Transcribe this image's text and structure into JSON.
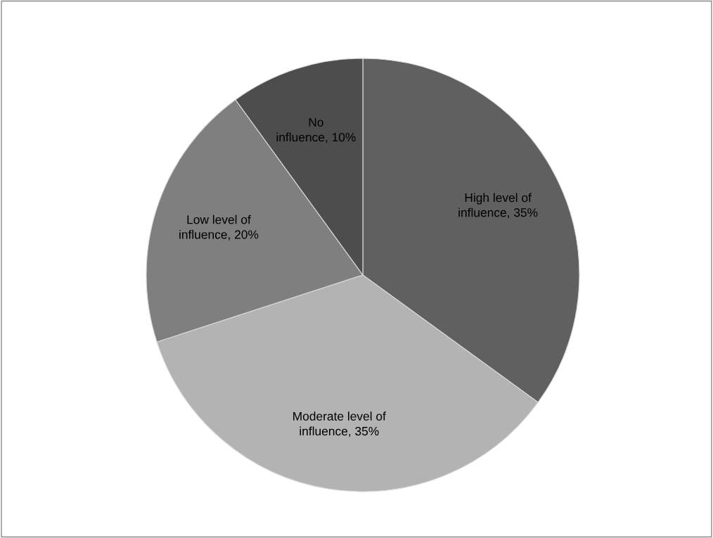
{
  "chart_data": {
    "type": "pie",
    "categories": [
      "High level of influence",
      "Moderate level of influence",
      "Low level of influence",
      "No influence"
    ],
    "values": [
      35,
      35,
      20,
      10
    ],
    "value_labels": [
      "35%",
      "35%",
      "20%",
      "10%"
    ],
    "colors": [
      "#606060",
      "#b3b3b3",
      "#7f7f7f",
      "#4d4d4d"
    ],
    "legend": false
  }
}
